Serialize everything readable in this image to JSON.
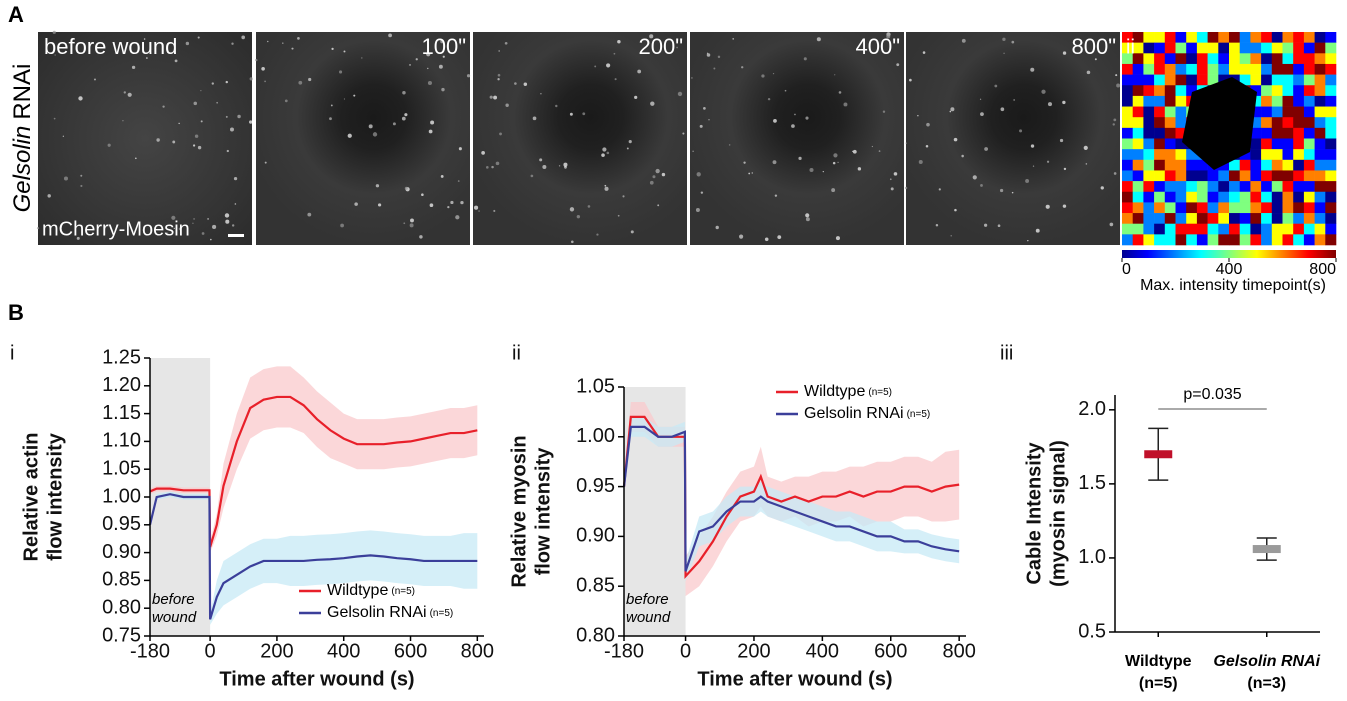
{
  "panel_a": {
    "label": "A",
    "row_label": [
      "Gelsolin",
      "RNAi"
    ],
    "frames": [
      "before wound",
      "100\"",
      "200\"",
      "400\"",
      "800\""
    ],
    "stain": "mCherry-Moesin",
    "map_label": "ii",
    "colorbar": {
      "lim": [
        0,
        800
      ],
      "ticks": [
        0,
        400,
        800
      ],
      "label": "Max. intensity timepoint(s)"
    }
  },
  "panel_b_label": "B",
  "chart_data": [
    {
      "type": "line",
      "panel": "i",
      "ylabel": [
        "Relative actin",
        "flow intensity"
      ],
      "xlabel": "Time after wound (s)",
      "shaded_x": [
        -180,
        0
      ],
      "shade_label": [
        "before",
        "wound"
      ],
      "legend": "lower-right",
      "xlim": [
        -180,
        820
      ],
      "xticks": [
        -180,
        0,
        200,
        400,
        600,
        800
      ],
      "ylim": [
        0.75,
        1.25
      ],
      "yticks": [
        0.75,
        {
          "value": 0.8,
          "label": "0.80"
        },
        0.85,
        {
          "value": 0.9,
          "label": "0.90"
        },
        0.95,
        {
          "value": 1.0,
          "label": "1.00"
        },
        1.05,
        {
          "value": 1.1,
          "label": "1.10"
        },
        1.15,
        {
          "value": 1.2,
          "label": "1.20"
        },
        1.25
      ],
      "x": [
        -180,
        -160,
        -120,
        -80,
        -40,
        -2,
        0,
        20,
        40,
        80,
        120,
        160,
        200,
        240,
        280,
        320,
        360,
        400,
        440,
        480,
        520,
        560,
        600,
        640,
        680,
        720,
        760,
        800
      ],
      "series": [
        {
          "name": "Wildtype",
          "n": "(n=5)",
          "color": "#e8202a",
          "band_color": "#f9c9cc",
          "values": [
            1.01,
            1.015,
            1.015,
            1.012,
            1.012,
            1.012,
            0.91,
            0.95,
            1.02,
            1.1,
            1.16,
            1.175,
            1.18,
            1.18,
            1.165,
            1.14,
            1.12,
            1.105,
            1.095,
            1.095,
            1.095,
            1.098,
            1.1,
            1.105,
            1.11,
            1.115,
            1.115,
            1.12
          ],
          "errors": [
            0.005,
            0.005,
            0.005,
            0.005,
            0.005,
            0.005,
            0.01,
            0.02,
            0.04,
            0.05,
            0.055,
            0.055,
            0.055,
            0.055,
            0.05,
            0.05,
            0.05,
            0.045,
            0.045,
            0.045,
            0.045,
            0.045,
            0.045,
            0.045,
            0.045,
            0.045,
            0.045,
            0.045
          ]
        },
        {
          "name": "Gelsolin RNAi",
          "n": "(n=5)",
          "color": "#3b3f9a",
          "band_color": "#c7e9f5",
          "values": [
            0.95,
            1.0,
            1.005,
            1.0,
            1.0,
            1.0,
            0.78,
            0.82,
            0.845,
            0.86,
            0.875,
            0.885,
            0.885,
            0.885,
            0.885,
            0.887,
            0.888,
            0.89,
            0.893,
            0.895,
            0.893,
            0.89,
            0.888,
            0.885,
            0.885,
            0.885,
            0.885,
            0.885
          ],
          "errors": [
            0.005,
            0.005,
            0.005,
            0.005,
            0.005,
            0.005,
            0.01,
            0.03,
            0.04,
            0.04,
            0.04,
            0.04,
            0.04,
            0.045,
            0.045,
            0.045,
            0.045,
            0.045,
            0.045,
            0.045,
            0.045,
            0.045,
            0.045,
            0.045,
            0.045,
            0.045,
            0.05,
            0.05
          ]
        }
      ]
    },
    {
      "type": "line",
      "panel": "ii",
      "ylabel": [
        "Relative myosin",
        "flow intensity"
      ],
      "xlabel": "Time after wound (s)",
      "shaded_x": [
        -180,
        0
      ],
      "shade_label": [
        "before",
        "wound"
      ],
      "legend": "upper-right",
      "xlim": [
        -180,
        820
      ],
      "xticks": [
        -180,
        0,
        200,
        400,
        600,
        800
      ],
      "ylim": [
        0.8,
        1.05
      ],
      "yticks": [
        {
          "value": 0.8,
          "label": "0.80"
        },
        0.85,
        {
          "value": 0.9,
          "label": "0.90"
        },
        0.95,
        {
          "value": 1.0,
          "label": "1.00"
        },
        1.05
      ],
      "x": [
        -180,
        -160,
        -120,
        -80,
        -40,
        -2,
        0,
        40,
        80,
        120,
        160,
        200,
        220,
        240,
        280,
        320,
        360,
        400,
        440,
        480,
        520,
        560,
        600,
        640,
        680,
        720,
        760,
        800
      ],
      "series": [
        {
          "name": "Wildtype",
          "n": "(n=5)",
          "color": "#e8202a",
          "band_color": "#f9c9cc",
          "values": [
            0.95,
            1.02,
            1.02,
            1.0,
            1.0,
            1.0,
            0.86,
            0.875,
            0.895,
            0.92,
            0.94,
            0.945,
            0.96,
            0.94,
            0.935,
            0.94,
            0.935,
            0.94,
            0.94,
            0.945,
            0.94,
            0.945,
            0.945,
            0.95,
            0.95,
            0.945,
            0.95,
            0.952
          ],
          "errors": [
            0.01,
            0.015,
            0.015,
            0.01,
            0.01,
            0.01,
            0.02,
            0.025,
            0.025,
            0.025,
            0.025,
            0.025,
            0.03,
            0.02,
            0.02,
            0.02,
            0.025,
            0.025,
            0.025,
            0.025,
            0.03,
            0.03,
            0.03,
            0.03,
            0.03,
            0.03,
            0.035,
            0.035
          ]
        },
        {
          "name": "Gelsolin RNAi",
          "n": "(n=5)",
          "color": "#3b3f9a",
          "band_color": "#c7e9f5",
          "values": [
            0.95,
            1.01,
            1.01,
            1.0,
            1.0,
            1.005,
            0.865,
            0.905,
            0.91,
            0.925,
            0.935,
            0.935,
            0.94,
            0.935,
            0.93,
            0.925,
            0.92,
            0.915,
            0.91,
            0.91,
            0.905,
            0.9,
            0.9,
            0.895,
            0.895,
            0.89,
            0.887,
            0.885
          ],
          "errors": [
            0.01,
            0.01,
            0.01,
            0.01,
            0.01,
            0.01,
            0.01,
            0.015,
            0.015,
            0.015,
            0.015,
            0.015,
            0.015,
            0.015,
            0.015,
            0.015,
            0.015,
            0.015,
            0.015,
            0.015,
            0.015,
            0.015,
            0.015,
            0.012,
            0.012,
            0.012,
            0.012,
            0.012
          ]
        }
      ]
    },
    {
      "type": "errorbar",
      "panel": "iii",
      "ylabel": [
        "Cable Intensity",
        "(myosin signal)"
      ],
      "categories": [
        "Wildtype",
        "Gelsolin RNAi"
      ],
      "n_labels": [
        "(n=5)",
        "(n=3)"
      ],
      "values": [
        1.7,
        1.06
      ],
      "errors": [
        0.175,
        0.075
      ],
      "colors": [
        "#c0102a",
        "#9a9a9a"
      ],
      "annotation": "p=0.035",
      "ylim": [
        0.5,
        2.1
      ],
      "yticks": [
        0.5,
        {
          "value": 1.0,
          "label": "1.0"
        },
        1.5,
        {
          "value": 2.0,
          "label": "2.0"
        }
      ]
    }
  ]
}
